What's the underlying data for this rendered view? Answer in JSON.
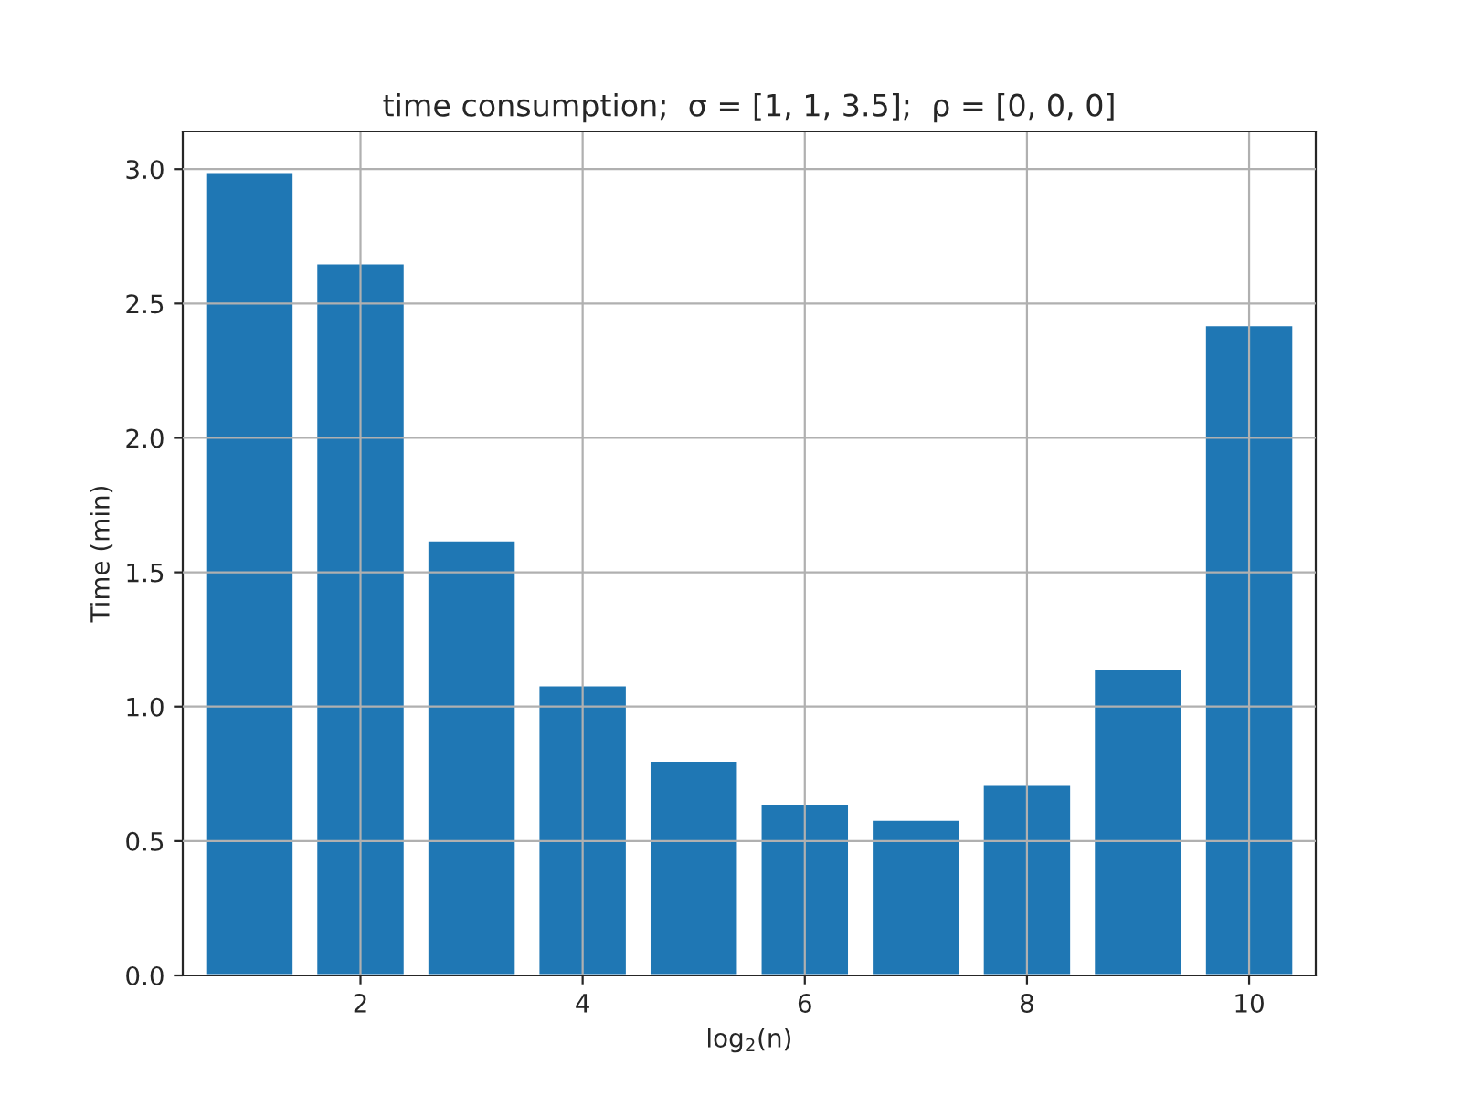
{
  "chart_data": {
    "type": "bar",
    "title": "time consumption;  σ = [1, 1, 3.5];  ρ = [0, 0, 0]",
    "xlabel": "log$_{2}$(n)",
    "ylabel": "Time (min)",
    "x": [
      1,
      2,
      3,
      4,
      5,
      6,
      7,
      8,
      9,
      10
    ],
    "values": [
      2.99,
      2.65,
      1.62,
      1.08,
      0.8,
      0.64,
      0.58,
      0.71,
      1.14,
      2.42
    ],
    "color": "#1f77b4",
    "xlim": [
      0.4,
      10.6
    ],
    "xticks": [
      2,
      4,
      6,
      8,
      10
    ],
    "ylim": [
      0,
      3.14
    ],
    "yticks": [
      {
        "value": 0,
        "label": "0.0"
      },
      {
        "value": 0.5,
        "label": "0.5"
      },
      {
        "value": 1,
        "label": "1.0"
      },
      {
        "value": 1.5,
        "label": "1.5"
      },
      {
        "value": 2,
        "label": "2.0"
      },
      {
        "value": 2.5,
        "label": "2.5"
      },
      {
        "value": 3,
        "label": "3.0"
      }
    ],
    "grid": true,
    "legend": false
  }
}
